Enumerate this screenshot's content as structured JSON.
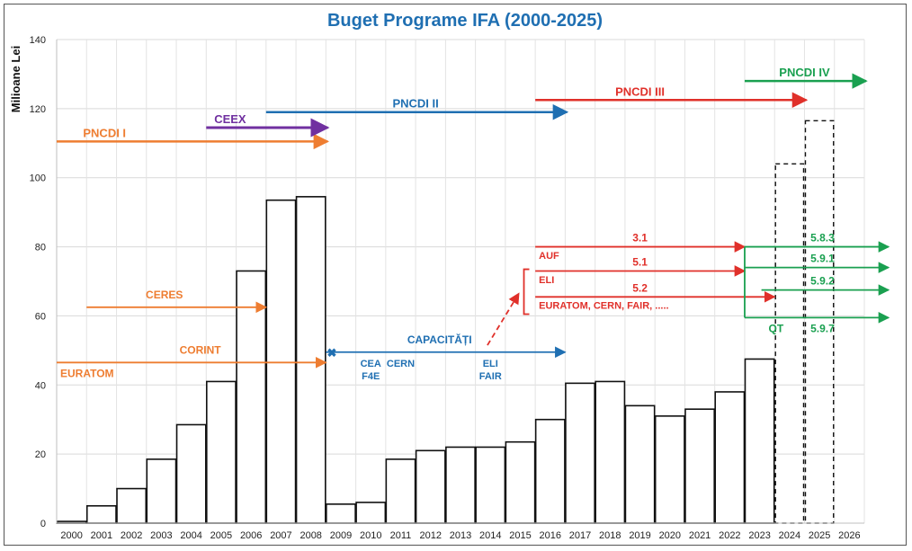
{
  "chart_data": {
    "type": "bar",
    "title": "Buget Programe IFA (2000-2025)",
    "ylabel": "Milioane Lei",
    "xlabel": "",
    "ylim": [
      0,
      140
    ],
    "yticks": [
      0,
      20,
      40,
      60,
      80,
      100,
      120,
      140
    ],
    "grid": "horizontal",
    "categories": [
      "2000",
      "2001",
      "2002",
      "2003",
      "2004",
      "2005",
      "2006",
      "2007",
      "2008",
      "2009",
      "2010",
      "2011",
      "2012",
      "2013",
      "2014",
      "2015",
      "2016",
      "2017",
      "2018",
      "2019",
      "2020",
      "2021",
      "2022",
      "2023",
      "2024",
      "2025",
      "2026"
    ],
    "values": [
      0.5,
      5,
      10,
      18.5,
      28.5,
      41,
      73,
      93.5,
      94.5,
      5.5,
      6,
      18.5,
      21,
      22,
      22,
      23.5,
      30,
      40.5,
      41,
      34,
      31,
      33,
      38,
      47.5,
      null,
      null,
      null
    ],
    "projected": [
      {
        "year": "2024",
        "value": 104
      },
      {
        "year": "2025",
        "value": 116.5
      }
    ],
    "programs": [
      {
        "label": "PNCDI I",
        "color": "#ee7d31",
        "y": 110.5,
        "from": 2000,
        "to": 2009
      },
      {
        "label": "CEEX",
        "color": "#7030a0",
        "y": 114.5,
        "from": 2005,
        "to": 2009
      },
      {
        "label": "PNCDI II",
        "color": "#1f6fb2",
        "y": 119,
        "from": 2007,
        "to": 2017
      },
      {
        "label": "PNCDI III",
        "color": "#e0302a",
        "y": 122.5,
        "from": 2016,
        "to": 2025
      },
      {
        "label": "PNCDI IV",
        "color": "#1aa050",
        "y": 128,
        "from": 2023,
        "to": 2027
      }
    ],
    "annotations": {
      "ceres": "CERES",
      "corint": "CORINT",
      "euratom": "EURATOM",
      "capacitati": "CAPACITĂȚI",
      "cea": "CEA",
      "f4e": "F4E",
      "cern": "CERN",
      "eli_fair": [
        "ELI",
        "FAIR"
      ],
      "auf": "AUF",
      "eli": "ELI",
      "euratom_list": "EURATOM, CERN, FAIR, .....",
      "qt": "QT",
      "sub_red": [
        "3.1",
        "5.1",
        "5.2"
      ],
      "sub_green": [
        "5.8.3",
        "5.9.1",
        "5.9.2",
        "5.9.7"
      ]
    }
  },
  "colors": {
    "orange": "#ee7d31",
    "purple": "#7030a0",
    "blue": "#1f6fb2",
    "red": "#e0302a",
    "green": "#1aa050"
  }
}
